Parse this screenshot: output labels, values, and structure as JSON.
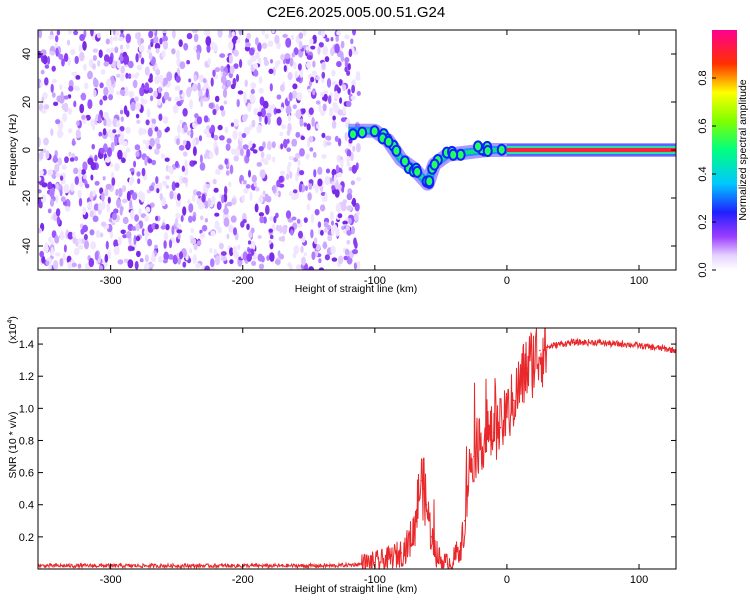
{
  "title": "C2E6.2025.005.00.51.G24",
  "colors": {
    "snr_line": "#e8282a",
    "axis": "#000000"
  },
  "chart_data": [
    {
      "type": "heatmap",
      "xlabel": "Height of straight line (km)",
      "ylabel": "Frequency (Hz)",
      "xlim": [
        -355,
        128
      ],
      "ylim": [
        -50,
        50
      ],
      "x_ticks": [
        -300,
        -200,
        -100,
        0,
        100
      ],
      "y_ticks": [
        -40,
        -20,
        0,
        20,
        40
      ],
      "colorbar": {
        "label": "Normalized spectral amplitude",
        "range": [
          0,
          1
        ],
        "ticks": [
          "0.0",
          "0.2",
          "0.4",
          "0.6",
          "0.8"
        ],
        "colormap": "white-purple-blue-cyan-green-yellow-red-magenta"
      },
      "features": {
        "noise_region_x": [
          -355,
          -112
        ],
        "carrier_track": [
          [
            -120,
            8
          ],
          [
            -100,
            8
          ],
          [
            -90,
            4
          ],
          [
            -80,
            -4
          ],
          [
            -70,
            -8
          ],
          [
            -60,
            -14
          ],
          [
            -55,
            -6
          ],
          [
            -45,
            -2
          ],
          [
            -30,
            -1
          ],
          [
            -15,
            0
          ],
          [
            0,
            0
          ],
          [
            50,
            0
          ],
          [
            128,
            0
          ]
        ]
      }
    },
    {
      "type": "line",
      "xlabel": "Height of straight line (km)",
      "ylabel": "SNR (10 * v/v)",
      "y_multiplier": "(x10",
      "y_multiplier_exp": "4",
      "y_multiplier_close": ")",
      "xlim": [
        -355,
        128
      ],
      "ylim": [
        0,
        1.5
      ],
      "x_ticks": [
        -300,
        -200,
        -100,
        0,
        100
      ],
      "y_ticks": [
        "0.2",
        "0.4",
        "0.6",
        "0.8",
        "1.0",
        "1.2",
        "1.4"
      ],
      "series": [
        {
          "color": "#e8282a",
          "x": [
            -355,
            -300,
            -200,
            -130,
            -110,
            -100,
            -90,
            -80,
            -75,
            -70,
            -67,
            -65,
            -63,
            -61,
            -59,
            -57,
            -55,
            -50,
            -45,
            -40,
            -35,
            -32,
            -30,
            -28,
            -25,
            -20,
            -15,
            -10,
            -5,
            0,
            5,
            10,
            15,
            20,
            25,
            30,
            35,
            40,
            50,
            60,
            70,
            80,
            90,
            100,
            110,
            120,
            128
          ],
          "y": [
            0.02,
            0.02,
            0.02,
            0.02,
            0.03,
            0.04,
            0.06,
            0.1,
            0.15,
            0.25,
            0.45,
            0.55,
            0.5,
            0.4,
            0.3,
            0.2,
            0.12,
            0.05,
            0.03,
            0.06,
            0.15,
            0.3,
            0.5,
            0.65,
            0.7,
            0.78,
            0.82,
            0.85,
            0.88,
            0.95,
            1.05,
            1.15,
            1.25,
            1.3,
            1.36,
            1.38,
            1.39,
            1.4,
            1.41,
            1.41,
            1.41,
            1.4,
            1.4,
            1.39,
            1.38,
            1.37,
            1.36
          ]
        }
      ]
    }
  ]
}
